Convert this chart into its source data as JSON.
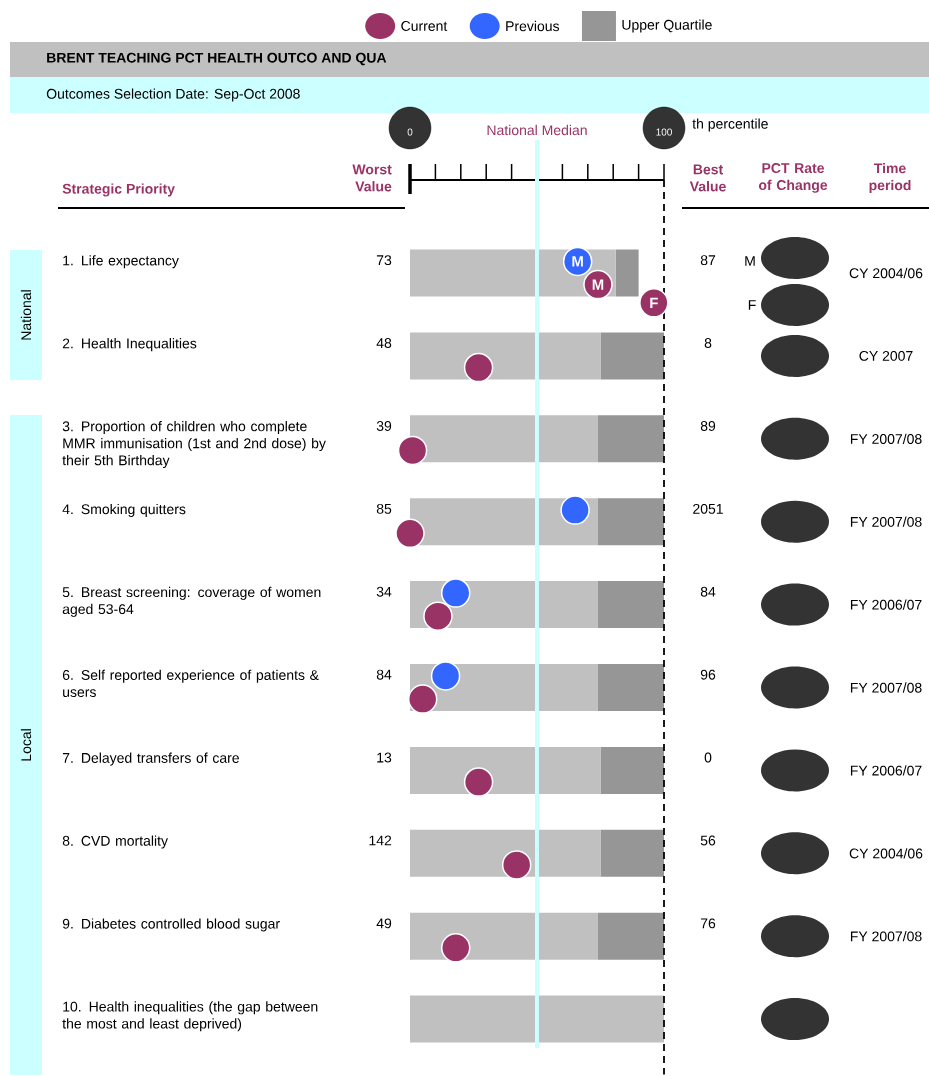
{
  "chart_data": {
    "type": "bar",
    "orientation": "horizontal",
    "stacked": true,
    "title": "BRENT TEACHING PCT HEALTH OUTCO AND QUA",
    "subtitle": "Outcomes Selection Date: Sep-Oct 2008",
    "categories": [
      "1. Life expectancy",
      "2. Health Inequalities",
      "3. Proportion of children who complete MMR immunisation (1st and 2nd dose) by their 5th Birthday",
      "4. Smoking quitters",
      "5. Breast screening: coverage of women aged 53-64",
      "6. Self reported experience of patients & users",
      "7. Delayed transfers of care",
      "8. CVD mortality",
      "9. Diabetes controlled blood sugar",
      "10. Health inequalities (the gap between the most and least deprived)"
    ],
    "xlim": [
      0,
      100
    ],
    "xticks": [
      {
        "value": 0,
        "label": "0"
      },
      {
        "value": 10,
        "label": null
      },
      {
        "value": 20,
        "label": null
      },
      {
        "value": 30,
        "label": null
      },
      {
        "value": 40,
        "label": null
      },
      {
        "value": 50,
        "label": null
      },
      {
        "value": 60,
        "label": null
      },
      {
        "value": 70,
        "label": null
      },
      {
        "value": 80,
        "label": null
      },
      {
        "value": 90,
        "label": null
      },
      {
        "value": 100,
        "label": "100"
      }
    ],
    "legend": "top",
    "marker": "circle",
    "series": [
      {
        "name": "Current",
        "type": "scatter",
        "color": "#993366",
        "values": [
          74,
          27,
          1,
          0,
          11,
          5,
          27,
          42,
          18,
          null
        ],
        "value_labels": [
          "M",
          null,
          null,
          null,
          null,
          null,
          null,
          null,
          null,
          null
        ]
      },
      {
        "type": "scatter",
        "color": "#993366",
        "values": [
          96,
          null,
          null,
          null,
          null,
          null,
          null,
          null,
          null,
          null
        ],
        "value_labels": [
          "F",
          null,
          null,
          null,
          null,
          null,
          null,
          null,
          null,
          null
        ]
      },
      {
        "name": "Previous",
        "type": "scatter",
        "color": "#3366ff",
        "values": [
          66,
          null,
          null,
          65,
          18,
          14,
          null,
          null,
          null,
          null
        ],
        "value_labels": [
          "M",
          null,
          null,
          null,
          null,
          null,
          null,
          null,
          null,
          null
        ]
      },
      {
        "color": "#c0c0c0",
        "values": [
          81,
          75,
          74,
          74,
          74,
          74,
          75,
          75,
          74,
          100
        ]
      },
      {
        "name": "Upper Quartile",
        "color": "#969696",
        "values": [
          9,
          25,
          26,
          26,
          26,
          26,
          25,
          25,
          26,
          null
        ]
      }
    ],
    "ref_lines": [
      {
        "axis": "x",
        "value": 50,
        "label": "National Median",
        "color": "#ccffff"
      },
      {
        "axis": "x",
        "value": 100,
        "line_style": "dashed",
        "color": "#000000"
      }
    ],
    "annotations": [
      "Strategic Priority",
      "Worst Value",
      "Best Value",
      "PCT Rate of Change",
      "Time period",
      "National",
      "Local",
      "th percentile",
      "M",
      "F",
      "73",
      "48",
      "39",
      "85",
      "34",
      "84",
      "13",
      "142",
      "49",
      "87",
      "8",
      "89",
      "2051",
      "84",
      "96",
      "0",
      "56",
      "76",
      "CY 2004/06",
      "CY 2007",
      "FY 2007/08",
      "FY 2007/08",
      "FY 2006/07",
      "FY 2007/08",
      "FY 2006/07",
      "CY 2004/06",
      "FY 2007/08"
    ]
  }
}
